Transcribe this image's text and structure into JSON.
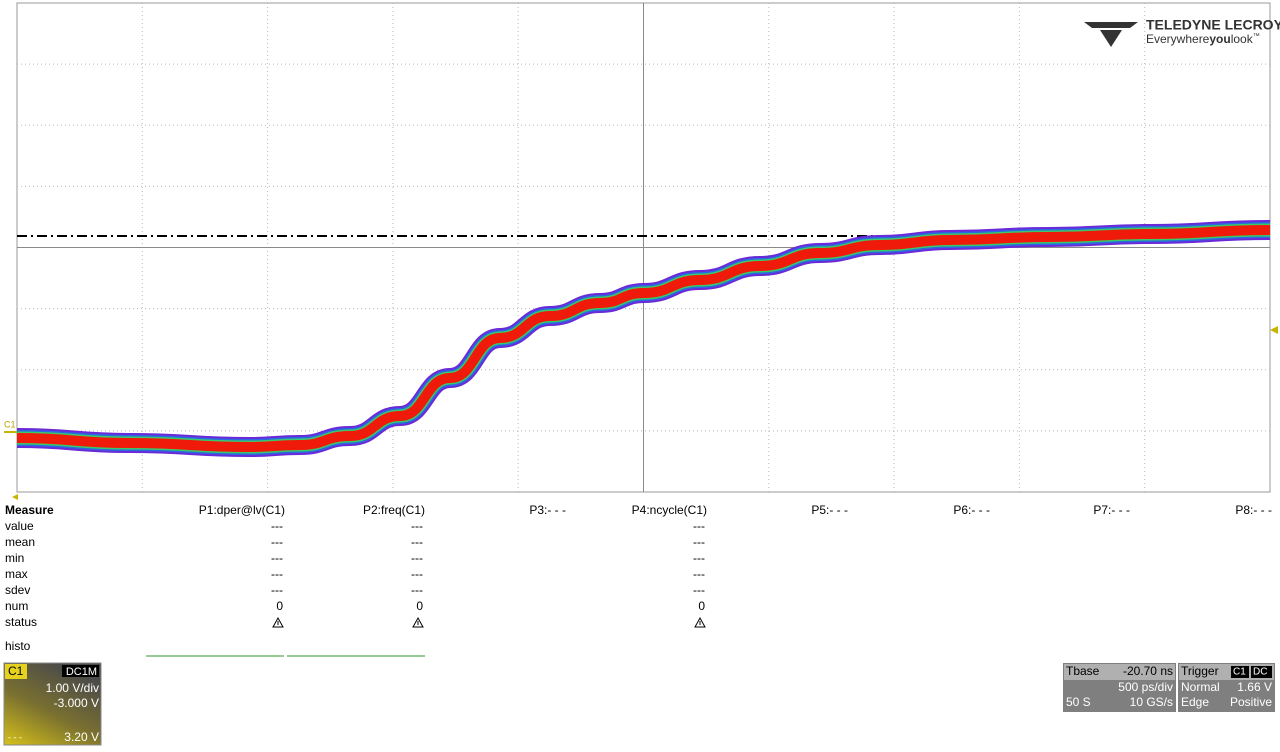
{
  "logo": {
    "brand": "TELEDYNE LECROY",
    "tagline_1": "Everywhere",
    "tagline_2": "you",
    "tagline_3": "look",
    "tagline_mark": "™"
  },
  "grid": {
    "channel_marker": "C1"
  },
  "measure": {
    "title": "Measure",
    "row_labels": [
      "value",
      "mean",
      "min",
      "max",
      "sdev",
      "num",
      "status"
    ],
    "histo_label": "histo",
    "params": [
      {
        "header": "P1:dper@lv(C1)",
        "values": [
          "---",
          "---",
          "---",
          "---",
          "---",
          "0"
        ]
      },
      {
        "header": "P2:freq(C1)",
        "values": [
          "---",
          "---",
          "---",
          "---",
          "---",
          "0"
        ]
      },
      {
        "header": "P3:- - -"
      },
      {
        "header": "P4:ncycle(C1)",
        "values": [
          "---",
          "---",
          "---",
          "---",
          "---",
          "0"
        ]
      },
      {
        "header": "P5:- - -"
      },
      {
        "header": "P6:- - -"
      },
      {
        "header": "P7:- - -"
      },
      {
        "header": "P8:- - -"
      }
    ]
  },
  "channel": {
    "name": "C1",
    "coupling": "DC1M",
    "scale": "1.00 V/div",
    "offset": "-3.000 V",
    "marker": "- - -",
    "value": "3.20 V"
  },
  "timebase": {
    "label": "Tbase",
    "delay": "-20.70 ns",
    "scale": "500 ps/div",
    "samples": "50 S",
    "rate": "10 GS/s"
  },
  "trigger": {
    "label": "Trigger",
    "source": "C1",
    "coupling": "DC",
    "mode": "Normal",
    "level": "1.66 V",
    "type": "Edge",
    "slope": "Positive"
  }
}
